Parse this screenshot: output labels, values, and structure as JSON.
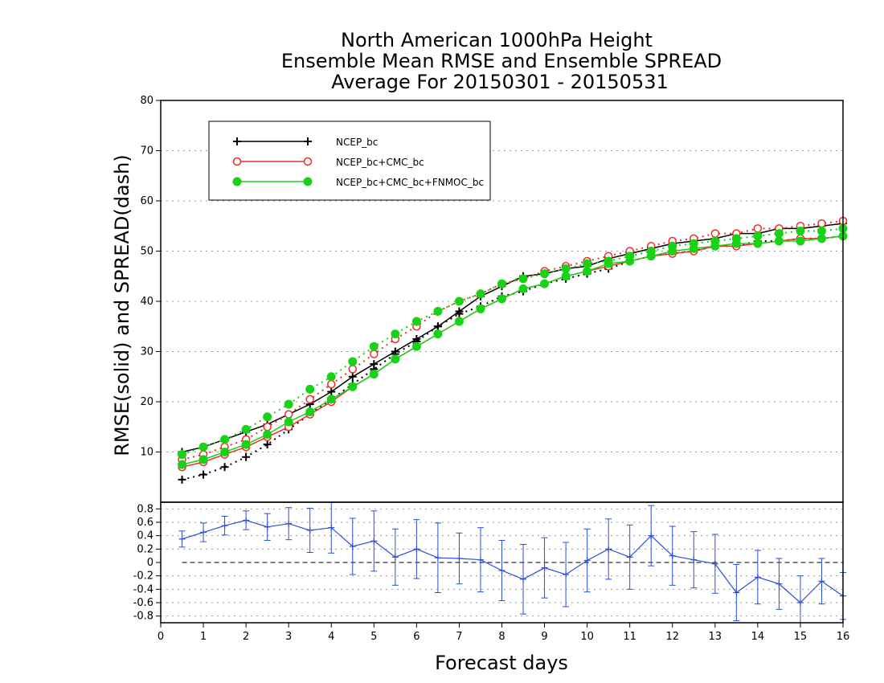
{
  "title": {
    "line1": "North American 1000hPa Height",
    "line2": "Ensemble Mean RMSE and Ensemble SPREAD",
    "line3": "Average For 20150301 - 20150531"
  },
  "colors": {
    "ncep": "#000000",
    "ncep_cmc": "#e8302a",
    "ncep_cmc_fnmoc": "#18d218",
    "diff": "#2a4fd8",
    "grid": "#9a9a9a"
  },
  "chart_data": [
    {
      "type": "line",
      "ylabel": "RMSE(solid) and SPREAD(dash)",
      "xlim": [
        0,
        16
      ],
      "ylim": [
        0,
        80
      ],
      "yticks": [
        "10",
        "20",
        "30",
        "40",
        "50",
        "60",
        "70",
        "80"
      ],
      "grid": true,
      "legend_position": "top-left",
      "x": [
        0.5,
        1,
        1.5,
        2,
        2.5,
        3,
        3.5,
        4,
        4.5,
        5,
        5.5,
        6,
        6.5,
        7,
        7.5,
        8,
        8.5,
        9,
        9.5,
        10,
        10.5,
        11,
        11.5,
        12,
        12.5,
        13,
        13.5,
        14,
        14.5,
        15,
        15.5,
        16
      ],
      "series": [
        {
          "name": "NCEP_bc",
          "style": "solid",
          "marker": "plus",
          "values": [
            10,
            11,
            12.5,
            14,
            15.5,
            17.5,
            19.5,
            22,
            25,
            27.5,
            30,
            32.5,
            35,
            38,
            41,
            43,
            45,
            45.5,
            46.5,
            47,
            48.5,
            49.5,
            50.5,
            51.5,
            52,
            52.5,
            53.5,
            53.5,
            54.5,
            54.5,
            55,
            55.5
          ]
        },
        {
          "name": "NCEP_bc",
          "style": "dash",
          "marker": "plus",
          "values": [
            4.5,
            5.5,
            7,
            9,
            11.5,
            14.5,
            17.5,
            20.5,
            23.5,
            26.5,
            29.5,
            32,
            35,
            37.5,
            39,
            41,
            42,
            43.5,
            44.5,
            45.5,
            46.5,
            48,
            49,
            49.5,
            50,
            51,
            51,
            52,
            52,
            52.5,
            52.5,
            53
          ]
        },
        {
          "name": "NCEP_bc+CMC_bc",
          "style": "solid",
          "marker": "open-circle",
          "values": [
            7,
            8,
            9.5,
            11,
            13,
            15,
            17.5,
            20,
            23,
            25.5,
            28.5,
            31,
            33.5,
            36,
            38.5,
            40.5,
            42.5,
            43.5,
            45,
            46,
            47,
            48,
            49,
            49.5,
            50,
            51,
            51,
            51.5,
            52,
            52.5,
            52.5,
            53
          ]
        },
        {
          "name": "NCEP_bc+CMC_bc",
          "style": "dash",
          "marker": "open-circle",
          "values": [
            8.5,
            9.5,
            11,
            12.5,
            15,
            17.5,
            20.5,
            23.5,
            26.5,
            29.5,
            32.5,
            35,
            38,
            40,
            41.5,
            43.5,
            44.5,
            46,
            47,
            48,
            49,
            50,
            51,
            52,
            52.5,
            53.5,
            53.5,
            54.5,
            54.5,
            55,
            55.5,
            56
          ]
        },
        {
          "name": "NCEP_bc+CMC_bc+FNMOC_bc",
          "style": "solid",
          "marker": "filled-circle",
          "values": [
            7.5,
            8.5,
            10,
            11.5,
            13.5,
            16,
            18,
            20.5,
            23,
            25.5,
            28.5,
            31,
            33.5,
            36,
            38.5,
            40.5,
            42.5,
            43.5,
            45,
            46,
            47.5,
            48,
            49,
            50,
            50.5,
            51,
            51.5,
            51.5,
            52,
            52,
            52.5,
            53
          ]
        },
        {
          "name": "NCEP_bc+CMC_bc+FNMOC_bc",
          "style": "dash",
          "marker": "filled-circle",
          "values": [
            9.5,
            11,
            12.5,
            14.5,
            17,
            19.5,
            22.5,
            25,
            28,
            31,
            33.5,
            36,
            38,
            40,
            41.5,
            43.5,
            44.5,
            45.5,
            46.5,
            47.5,
            48,
            49,
            50,
            51,
            51.5,
            52,
            52.5,
            53,
            53.5,
            54,
            54,
            54.5
          ]
        }
      ]
    },
    {
      "type": "line",
      "xlabel": "Forecast days",
      "xlim": [
        0,
        16
      ],
      "ylim": [
        -0.9,
        0.9
      ],
      "xticks": [
        "0",
        "1",
        "2",
        "3",
        "4",
        "5",
        "6",
        "7",
        "8",
        "9",
        "10",
        "11",
        "12",
        "13",
        "14",
        "15",
        "16"
      ],
      "yticks": [
        "-0.8",
        "-0.6",
        "-0.4",
        "-0.2",
        "0",
        "0.2",
        "0.4",
        "0.6",
        "0.8"
      ],
      "grid": true,
      "zero_line": "dash",
      "x": [
        0.5,
        1,
        1.5,
        2,
        2.5,
        3,
        3.5,
        4,
        4.5,
        5,
        5.5,
        6,
        6.5,
        7,
        7.5,
        8,
        8.5,
        9,
        9.5,
        10,
        10.5,
        11,
        11.5,
        12,
        12.5,
        13,
        13.5,
        14,
        14.5,
        15,
        15.5,
        16
      ],
      "values": [
        0.35,
        0.45,
        0.55,
        0.63,
        0.53,
        0.58,
        0.48,
        0.52,
        0.24,
        0.32,
        0.08,
        0.2,
        0.07,
        0.06,
        0.04,
        -0.12,
        -0.25,
        -0.08,
        -0.18,
        0.03,
        0.2,
        0.08,
        0.4,
        0.1,
        0.04,
        -0.02,
        -0.45,
        -0.22,
        -0.32,
        -0.6,
        -0.28,
        -0.5
      ],
      "error": [
        0.12,
        0.14,
        0.14,
        0.14,
        0.2,
        0.24,
        0.33,
        0.38,
        0.42,
        0.45,
        0.42,
        0.44,
        0.52,
        0.38,
        0.48,
        0.45,
        0.52,
        0.45,
        0.48,
        0.47,
        0.45,
        0.48,
        0.45,
        0.44,
        0.42,
        0.44,
        0.42,
        0.4,
        0.38,
        0.4,
        0.34,
        0.35
      ]
    }
  ],
  "legend": {
    "items": [
      {
        "label": "NCEP_bc",
        "marker": "plus",
        "color": "#000000"
      },
      {
        "label": "NCEP_bc+CMC_bc",
        "marker": "open-circle",
        "color": "#e8302a"
      },
      {
        "label": "NCEP_bc+CMC_bc+FNMOC_bc",
        "marker": "filled-circle",
        "color": "#18d218"
      }
    ]
  }
}
